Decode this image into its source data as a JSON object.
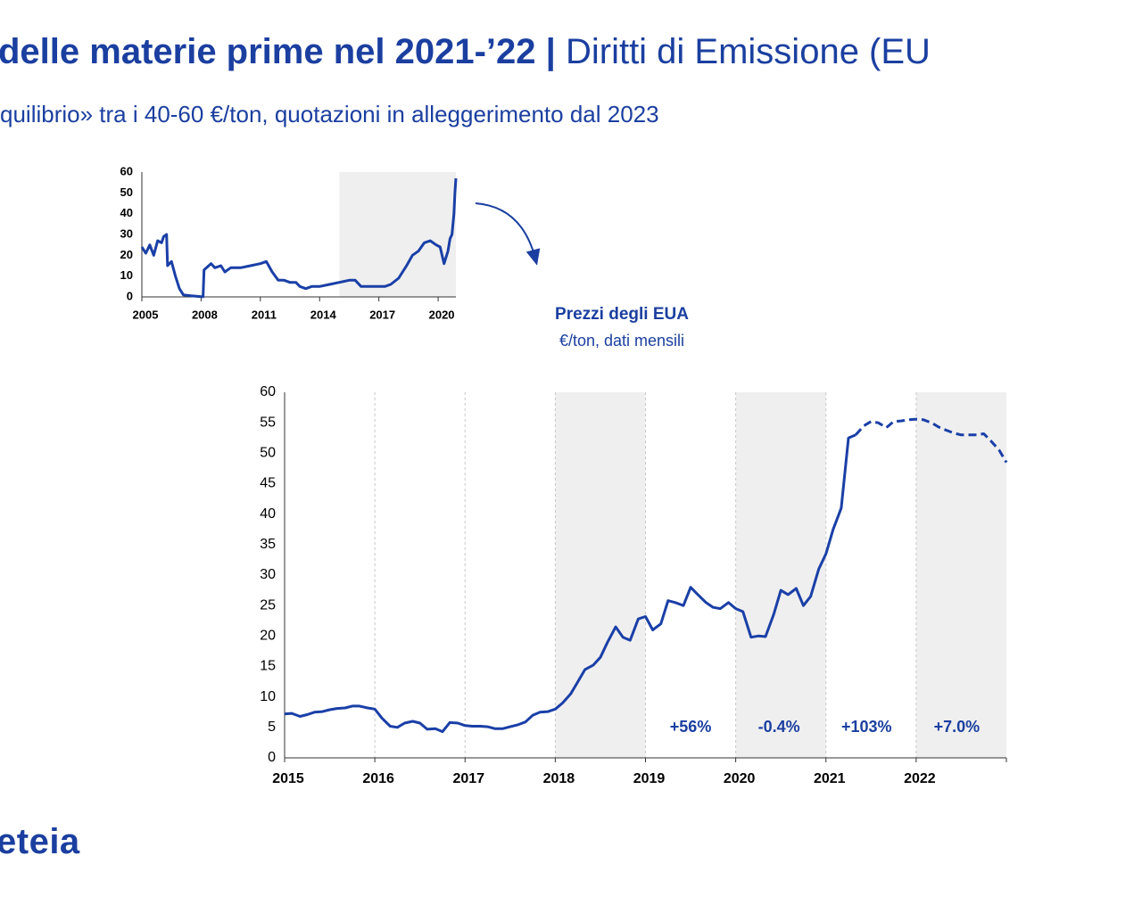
{
  "header": {
    "title_bold": "delle materie prime nel 2021-’22 |",
    "title_light": "Diritti di Emissione (EU",
    "subtitle": "quilibrio» tra i 40-60 €/ton, quotazioni in alleggerimento dal 2023"
  },
  "footer": {
    "logo": "eteia"
  },
  "chart_data": [
    {
      "type": "line",
      "xlim": [
        2005,
        2020.9
      ],
      "xticks": [
        2005,
        2008,
        2011,
        2014,
        2017,
        2020
      ],
      "ylim": [
        0,
        60
      ],
      "yticks": [
        0,
        10,
        20,
        30,
        40,
        50,
        60
      ],
      "shaded_ranges": [
        [
          2015,
          2020.9
        ]
      ],
      "series": [
        {
          "color": "#1a3fa7",
          "x": [
            2005.0,
            2005.2,
            2005.4,
            2005.6,
            2005.8,
            2006.0,
            2006.1,
            2006.25,
            2006.3,
            2006.5,
            2006.7,
            2006.9,
            2007.1,
            2007.5,
            2008.0,
            2008.1,
            2008.15,
            2008.5,
            2008.7,
            2009.0,
            2009.2,
            2009.5,
            2010.0,
            2010.5,
            2011.0,
            2011.3,
            2011.6,
            2011.9,
            2012.2,
            2012.5,
            2012.8,
            2013.0,
            2013.3,
            2013.6,
            2014.0,
            2014.5,
            2015.0,
            2015.5,
            2015.8,
            2016.1,
            2016.5,
            2016.9,
            2017.3,
            2017.6,
            2018.0,
            2018.4,
            2018.7,
            2019.0,
            2019.3,
            2019.6,
            2019.9,
            2020.1,
            2020.3,
            2020.5,
            2020.6,
            2020.7,
            2020.8,
            2020.85,
            2020.9
          ],
          "values": [
            24,
            21,
            25,
            20,
            27,
            26,
            29,
            30,
            15,
            17,
            10,
            4,
            1,
            0.5,
            0.1,
            0.1,
            13,
            16,
            14,
            15,
            12,
            14,
            14,
            15,
            16,
            17,
            12,
            8,
            8,
            7,
            7,
            5,
            4,
            5,
            5,
            6,
            7,
            8,
            8,
            5,
            5,
            5,
            5,
            6,
            9,
            15,
            20,
            22,
            26,
            27,
            25,
            24,
            16,
            22,
            28,
            30,
            40,
            50,
            57
          ]
        }
      ]
    },
    {
      "type": "line",
      "title": "Prezzi degli EUA",
      "subtitle": "€/ton, dati mensili",
      "xlim": [
        2015,
        2023
      ],
      "xticks": [
        2015,
        2016,
        2017,
        2018,
        2019,
        2020,
        2021,
        2022
      ],
      "ylim": [
        0,
        60
      ],
      "yticks": [
        0,
        5,
        10,
        15,
        20,
        25,
        30,
        35,
        40,
        45,
        50,
        55,
        60
      ],
      "xgrid": "dashed",
      "shaded_ranges": [
        [
          2018,
          2019
        ],
        [
          2020,
          2021
        ],
        [
          2022,
          2023
        ]
      ],
      "annotations": [
        {
          "text": "+56%",
          "x": 2019.5
        },
        {
          "text": "-0.4%",
          "x": 2020.48
        },
        {
          "text": "+103%",
          "x": 2021.45
        },
        {
          "text": "+7.0%",
          "x": 2022.45
        }
      ],
      "series": [
        {
          "color": "#1a3fa7",
          "x": [
            2015.0,
            2015.08,
            2015.17,
            2015.25,
            2015.33,
            2015.42,
            2015.5,
            2015.58,
            2015.67,
            2015.75,
            2015.83,
            2015.92,
            2016.0,
            2016.08,
            2016.17,
            2016.25,
            2016.33,
            2016.42,
            2016.5,
            2016.58,
            2016.67,
            2016.75,
            2016.83,
            2016.92,
            2017.0,
            2017.08,
            2017.17,
            2017.25,
            2017.33,
            2017.42,
            2017.5,
            2017.58,
            2017.67,
            2017.75,
            2017.83,
            2017.92,
            2018.0,
            2018.08,
            2018.17,
            2018.25,
            2018.33,
            2018.42,
            2018.5,
            2018.58,
            2018.67,
            2018.75,
            2018.83,
            2018.92,
            2019.0,
            2019.08,
            2019.17,
            2019.25,
            2019.33,
            2019.42,
            2019.5,
            2019.58,
            2019.67,
            2019.75,
            2019.83,
            2019.92,
            2020.0,
            2020.08,
            2020.17,
            2020.25,
            2020.33,
            2020.42,
            2020.5,
            2020.58,
            2020.67,
            2020.75,
            2020.83,
            2020.92,
            2021.0,
            2021.08,
            2021.17,
            2021.25,
            2021.33
          ],
          "values": [
            7.2,
            7.3,
            6.8,
            7.1,
            7.5,
            7.6,
            7.9,
            8.1,
            8.2,
            8.5,
            8.5,
            8.2,
            8.0,
            6.5,
            5.2,
            5.0,
            5.7,
            6.0,
            5.7,
            4.7,
            4.8,
            4.3,
            5.8,
            5.7,
            5.3,
            5.2,
            5.2,
            5.1,
            4.8,
            4.8,
            5.1,
            5.4,
            5.9,
            7.0,
            7.5,
            7.6,
            8.0,
            9.0,
            10.5,
            12.5,
            14.5,
            15.2,
            16.5,
            19.0,
            21.5,
            19.8,
            19.3,
            22.8,
            23.2,
            21.0,
            22.0,
            25.8,
            25.5,
            25.0,
            28.0,
            26.8,
            25.5,
            24.7,
            24.5,
            25.5,
            24.5,
            24.0,
            19.8,
            20.0,
            19.9,
            23.5,
            27.5,
            26.8,
            27.8,
            25.0,
            26.5,
            31.0,
            33.5,
            37.5,
            41.0,
            52.5,
            53.0
          ]
        },
        {
          "color": "#1a3fa7",
          "line_style": "dashed",
          "x": [
            2021.33,
            2021.42,
            2021.5,
            2021.58,
            2021.67,
            2021.75,
            2021.83,
            2021.92,
            2022.0,
            2022.08,
            2022.17,
            2022.25,
            2022.33,
            2022.42,
            2022.5,
            2022.58,
            2022.67,
            2022.75,
            2022.83,
            2022.92,
            2023.0
          ],
          "values": [
            53.0,
            54.5,
            55.2,
            55.0,
            54.2,
            55.2,
            55.3,
            55.5,
            55.6,
            55.5,
            55.0,
            54.3,
            53.8,
            53.3,
            53.0,
            53.0,
            53.0,
            53.2,
            52.0,
            50.5,
            48.5
          ]
        }
      ]
    }
  ]
}
